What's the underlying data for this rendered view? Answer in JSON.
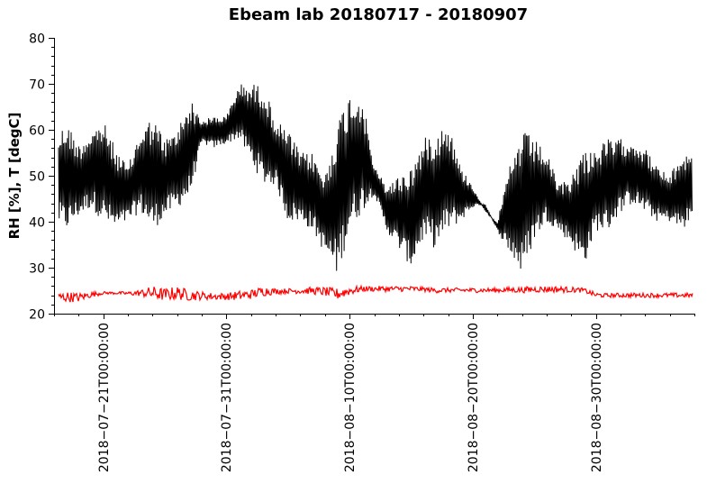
{
  "chart_data": {
    "type": "line",
    "title": "Ebeam lab 20180717 - 20180907",
    "xlabel": "",
    "ylabel": "RH [%], T [degC]",
    "xlim": [
      "2018-07-17",
      "2018-09-07"
    ],
    "ylim": [
      20,
      80
    ],
    "y_ticks": [
      "20",
      "30",
      "40",
      "50",
      "60",
      "70",
      "80"
    ],
    "x_ticks": [
      {
        "date": "2018-07-21",
        "label": "2018−07−21T00:00:00"
      },
      {
        "date": "2018-07-31",
        "label": "2018−07−31T00:00:00"
      },
      {
        "date": "2018-08-10",
        "label": "2018−08−10T00:00:00"
      },
      {
        "date": "2018-08-20",
        "label": "2018−08−20T00:00:00"
      },
      {
        "date": "2018-08-30",
        "label": "2018−08−30T00:00:00"
      }
    ],
    "grid": false,
    "series": [
      {
        "color": "#000000",
        "x": [
          "2018-07-17",
          "2018-07-18",
          "2018-07-19",
          "2018-07-20",
          "2018-07-21",
          "2018-07-22",
          "2018-07-23",
          "2018-07-24",
          "2018-07-25",
          "2018-07-26",
          "2018-07-27",
          "2018-07-28",
          "2018-07-29",
          "2018-07-30",
          "2018-07-31",
          "2018-08-01",
          "2018-08-02",
          "2018-08-03",
          "2018-08-04",
          "2018-08-05",
          "2018-08-06",
          "2018-08-07",
          "2018-08-08",
          "2018-08-09",
          "2018-08-10",
          "2018-08-11",
          "2018-08-12",
          "2018-08-13",
          "2018-08-14",
          "2018-08-15",
          "2018-08-16",
          "2018-08-17",
          "2018-08-18",
          "2018-08-19",
          "2018-08-20",
          "2018-08-21",
          "2018-08-22",
          "2018-08-23",
          "2018-08-24",
          "2018-08-25",
          "2018-08-26",
          "2018-08-27",
          "2018-08-28",
          "2018-08-29",
          "2018-08-30",
          "2018-08-31",
          "2018-09-01",
          "2018-09-02",
          "2018-09-03",
          "2018-09-04",
          "2018-09-05",
          "2018-09-06",
          "2018-09-07"
        ],
        "y_min": [
          40,
          38,
          41,
          43,
          40,
          38,
          40,
          42,
          38,
          41,
          43,
          45,
          57,
          56,
          57,
          58,
          53,
          48,
          48,
          40,
          40,
          38,
          33,
          28,
          38,
          42,
          46,
          38,
          34,
          30,
          36,
          34,
          38,
          40,
          43,
          44,
          38,
          33,
          28,
          36,
          40,
          38,
          35,
          30,
          38,
          38,
          42,
          44,
          42,
          40,
          40,
          38,
          41
        ],
        "y_max": [
          58,
          62,
          57,
          60,
          62,
          56,
          52,
          60,
          63,
          58,
          60,
          67,
          62,
          63,
          63,
          70,
          70,
          70,
          62,
          60,
          55,
          55,
          50,
          62,
          68,
          68,
          52,
          48,
          50,
          52,
          58,
          60,
          62,
          52,
          48,
          42,
          40,
          52,
          60,
          58,
          55,
          48,
          50,
          56,
          56,
          58,
          58,
          58,
          56,
          52,
          50,
          55,
          55
        ]
      },
      {
        "color": "#ff0000",
        "x": [
          "2018-07-17",
          "2018-07-18",
          "2018-07-19",
          "2018-07-20",
          "2018-07-21",
          "2018-07-22",
          "2018-07-23",
          "2018-07-24",
          "2018-07-25",
          "2018-07-26",
          "2018-07-27",
          "2018-07-28",
          "2018-07-29",
          "2018-07-30",
          "2018-07-31",
          "2018-08-01",
          "2018-08-02",
          "2018-08-03",
          "2018-08-04",
          "2018-08-05",
          "2018-08-06",
          "2018-08-07",
          "2018-08-08",
          "2018-08-09",
          "2018-08-10",
          "2018-08-11",
          "2018-08-12",
          "2018-08-13",
          "2018-08-14",
          "2018-08-15",
          "2018-08-16",
          "2018-08-17",
          "2018-08-18",
          "2018-08-19",
          "2018-08-20",
          "2018-08-21",
          "2018-08-22",
          "2018-08-23",
          "2018-08-24",
          "2018-08-25",
          "2018-08-26",
          "2018-08-27",
          "2018-08-28",
          "2018-08-29",
          "2018-08-30",
          "2018-08-31",
          "2018-09-01",
          "2018-09-02",
          "2018-09-03",
          "2018-09-04",
          "2018-09-05",
          "2018-09-06",
          "2018-09-07"
        ],
        "y_min": [
          22.5,
          22.5,
          22.5,
          23.5,
          24.2,
          24.2,
          24.0,
          23.8,
          23.0,
          22.8,
          23.0,
          22.8,
          23.0,
          23.0,
          23.0,
          22.8,
          23.2,
          23.8,
          24.2,
          24.4,
          24.3,
          24.2,
          23.8,
          23.0,
          24.0,
          24.8,
          24.8,
          24.8,
          24.8,
          24.8,
          24.8,
          24.5,
          24.6,
          24.6,
          24.6,
          24.6,
          24.6,
          24.6,
          24.5,
          24.6,
          24.6,
          24.6,
          24.6,
          24.6,
          23.5,
          23.5,
          23.5,
          23.5,
          23.5,
          23.5,
          23.5,
          23.5,
          23.5
        ],
        "y_max": [
          24.5,
          24.8,
          24.5,
          24.8,
          24.8,
          24.8,
          24.8,
          25.2,
          26.0,
          25.5,
          26.0,
          25.2,
          24.8,
          24.5,
          24.5,
          25.0,
          25.2,
          26.0,
          25.5,
          25.5,
          25.6,
          25.8,
          25.8,
          25.5,
          26.0,
          26.0,
          26.0,
          26.0,
          26.0,
          26.0,
          25.8,
          25.6,
          25.6,
          25.6,
          25.6,
          25.6,
          25.6,
          25.8,
          25.8,
          26.0,
          26.0,
          26.0,
          25.8,
          25.6,
          24.6,
          24.4,
          24.5,
          24.5,
          24.5,
          24.5,
          24.5,
          24.5,
          24.5
        ]
      }
    ]
  }
}
